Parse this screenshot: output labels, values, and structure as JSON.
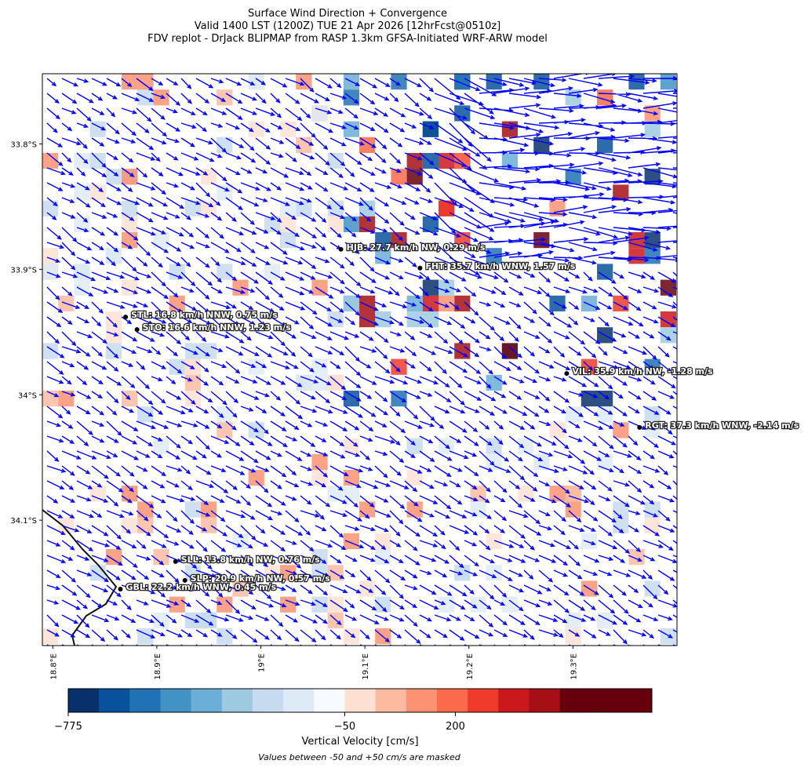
{
  "header": {
    "title_lines": [
      "Surface Wind Direction + Convergence",
      "Valid 1400 LST (1200Z) TUE 21 Apr 2026 [12hrFcst@0510z]",
      "FDV replot - DrJack BLIPMAP from RASP 1.3km GFSA-Initiated WRF-ARW model"
    ]
  },
  "map": {
    "xlim": [
      18.79,
      19.4
    ],
    "ylim": [
      -34.2,
      -33.744
    ],
    "xticks": [
      {
        "value": 18.8,
        "label": "18.8°E"
      },
      {
        "value": 18.9,
        "label": "18.9°E"
      },
      {
        "value": 19.0,
        "label": "19°E"
      },
      {
        "value": 19.1,
        "label": "19.1°E"
      },
      {
        "value": 19.2,
        "label": "19.2°E"
      },
      {
        "value": 19.3,
        "label": "19.3°E"
      }
    ],
    "yticks": [
      {
        "value": -33.8,
        "label": "33.8°S"
      },
      {
        "value": -33.9,
        "label": "33.9°S"
      },
      {
        "value": -34.0,
        "label": "34°S"
      },
      {
        "value": -34.1,
        "label": "34.1°S"
      }
    ],
    "stations": [
      {
        "label": "HJB: 27.7 km/h NW, 0.29 m/s",
        "lon": 19.077,
        "lat": -33.884
      },
      {
        "label": "FHT: 35.7 km/h WNW, 1.57 m/s",
        "lon": 19.153,
        "lat": -33.899
      },
      {
        "label": "STL: 16.8 km/h NNW, 0.75 m/s",
        "lon": 18.87,
        "lat": -33.938
      },
      {
        "label": "STO: 16.6 km/h NNW, 1.23 m/s",
        "lon": 18.881,
        "lat": -33.948
      },
      {
        "label": "VIL: 35.9 km/h NW, -1.28 m/s",
        "lon": 19.294,
        "lat": -33.983
      },
      {
        "label": "RGT: 37.3 km/h WNW, -2.14 m/s",
        "lon": 19.364,
        "lat": -34.026
      },
      {
        "label": "SLL: 13.8 km/h NW, 0.76 m/s",
        "lon": 18.918,
        "lat": -34.133
      },
      {
        "label": "SLP: 20.9 km/h NW, 0.57 m/s",
        "lon": 18.927,
        "lat": -34.148
      },
      {
        "label": "GBL: 22.2 km/h WNW, 0.45 m/s",
        "lon": 18.865,
        "lat": -34.155
      }
    ]
  },
  "colorbar": {
    "label": "Vertical Velocity [cm/s]",
    "bounds": [
      -775,
      -695,
      -614,
      -534,
      -453,
      -372,
      -292,
      -211,
      -131,
      -50,
      50,
      108,
      165,
      223,
      281,
      338,
      396,
      454,
      511,
      569
    ],
    "colors": [
      "#08306b",
      "#08519c",
      "#2171b5",
      "#4292c6",
      "#6baed6",
      "#9ecae1",
      "#c6dbef",
      "#deebf7",
      "#f7fbff",
      "#fee0d2",
      "#fcbba1",
      "#fc9272",
      "#fb6a4a",
      "#ef3b2c",
      "#cb181d",
      "#a50f15",
      "#67000d",
      "#67000d",
      "#67000d"
    ],
    "ticks": [
      {
        "value": -775,
        "label": "−775"
      },
      {
        "value": -50,
        "label": "−50"
      },
      200
    ]
  },
  "footer": {
    "note": "Values between -50 and +50 cm/s are masked"
  }
}
